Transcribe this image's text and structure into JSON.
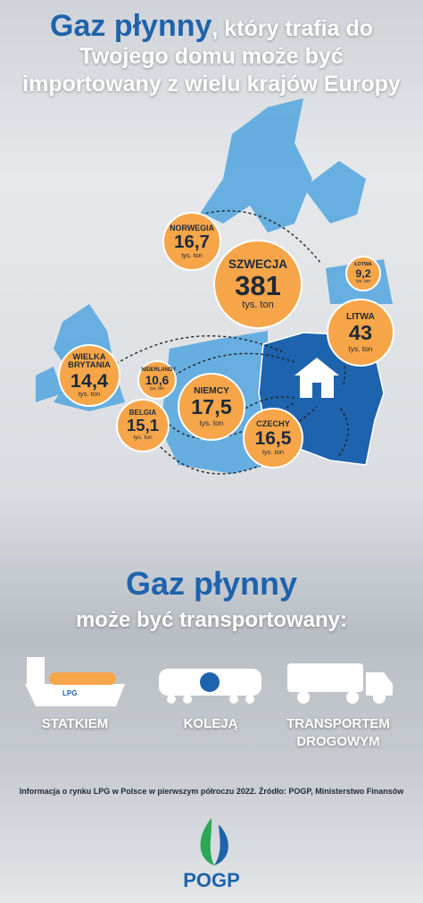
{
  "header": {
    "highlight": "Gaz płynny",
    "rest": ", który trafia do",
    "lines": [
      "Twojego domu może być",
      "importowany z wielu krajów Europy"
    ]
  },
  "map": {
    "countries": [
      {
        "name": "NORWEGIA",
        "value": "16,7",
        "unit": "tys. ton"
      },
      {
        "name": "SZWECJA",
        "value": "381",
        "unit": "tys. ton"
      },
      {
        "name": "ŁOTWA",
        "value": "9,2",
        "unit": "tys. ton"
      },
      {
        "name": "LITWA",
        "value": "43",
        "unit": "tys. ton"
      },
      {
        "name": "WIELKA BRYTANIA",
        "value": "14,4",
        "unit": "tys. ton"
      },
      {
        "name": "NIDERLANDY",
        "value": "10,6",
        "unit": "tys. ton"
      },
      {
        "name": "BELGIA",
        "value": "15,1",
        "unit": "tys. ton"
      },
      {
        "name": "NIEMCY",
        "value": "17,5",
        "unit": "tys. ton"
      },
      {
        "name": "CZECHY",
        "value": "16,5",
        "unit": "tys. ton"
      }
    ]
  },
  "transport": {
    "title": "Gaz płynny",
    "subtitle": "może być transportowany:",
    "ship_label": "LPG",
    "modes": [
      {
        "label": "STATKIEM"
      },
      {
        "label": "KOLEJĄ"
      },
      {
        "label": "TRANSPORTEM DROGOWYM"
      }
    ]
  },
  "footer": {
    "source": "Informacja o rynku LPG w Polsce w pierwszym półroczu 2022. Źródło: POGP, Ministerstwo Finansów",
    "logo": "POGP"
  }
}
